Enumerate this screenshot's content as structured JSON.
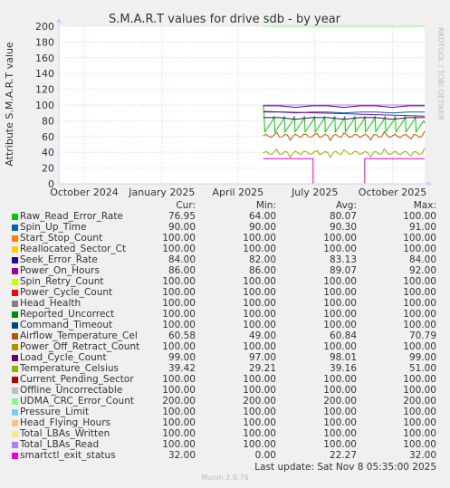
{
  "chart_data": {
    "type": "line",
    "title": "S.M.A.R.T values for drive sdb - by year",
    "ylabel": "Attribute S.M.A.R.T value",
    "xlabel": "",
    "ylim": [
      0,
      200
    ],
    "y_ticks": [
      0,
      20,
      40,
      60,
      80,
      100,
      120,
      140,
      160,
      180,
      200
    ],
    "x_range": [
      "2024-09-01",
      "2025-11-08"
    ],
    "x_ticks": [
      {
        "date": "2024-10-01",
        "label": "October 2024"
      },
      {
        "date": "2025-01-01",
        "label": "January 2025"
      },
      {
        "date": "2025-04-01",
        "label": "April 2025"
      },
      {
        "date": "2025-07-01",
        "label": "July 2025"
      },
      {
        "date": "2025-10-01",
        "label": "October 2025"
      }
    ],
    "data_start": "2025-05-01",
    "grid": true,
    "watermark": "RRDTOOL / TOBI OETIKER",
    "columns": [
      "Cur:",
      "Min:",
      "Avg:",
      "Max:"
    ],
    "series": [
      {
        "name": "Raw_Read_Error_Rate",
        "color": "#00cc00",
        "cur": "76.95",
        "min": "64.00",
        "avg": "80.07",
        "max": "100.00",
        "style": "sawtooth"
      },
      {
        "name": "Spin_Up_Time",
        "color": "#0066b3",
        "cur": "90.00",
        "min": "90.00",
        "avg": "90.30",
        "max": "91.00",
        "style": "flat"
      },
      {
        "name": "Start_Stop_Count",
        "color": "#ff8000",
        "cur": "100.00",
        "min": "100.00",
        "avg": "100.00",
        "max": "100.00",
        "style": "flat"
      },
      {
        "name": "Reallocated_Sector_Ct",
        "color": "#ffcc00",
        "cur": "100.00",
        "min": "100.00",
        "avg": "100.00",
        "max": "100.00",
        "style": "flat"
      },
      {
        "name": "Seek_Error_Rate",
        "color": "#330099",
        "cur": "84.00",
        "min": "82.00",
        "avg": "83.13",
        "max": "84.00",
        "style": "flat"
      },
      {
        "name": "Power_On_Hours",
        "color": "#990099",
        "cur": "86.00",
        "min": "86.00",
        "avg": "89.07",
        "max": "92.00",
        "style": "decline"
      },
      {
        "name": "Spin_Retry_Count",
        "color": "#ccff00",
        "cur": "100.00",
        "min": "100.00",
        "avg": "100.00",
        "max": "100.00",
        "style": "flat"
      },
      {
        "name": "Power_Cycle_Count",
        "color": "#ff0000",
        "cur": "100.00",
        "min": "100.00",
        "avg": "100.00",
        "max": "100.00",
        "style": "flat"
      },
      {
        "name": "Head_Health",
        "color": "#808080",
        "cur": "100.00",
        "min": "100.00",
        "avg": "100.00",
        "max": "100.00",
        "style": "flat"
      },
      {
        "name": "Reported_Uncorrect",
        "color": "#008f00",
        "cur": "100.00",
        "min": "100.00",
        "avg": "100.00",
        "max": "100.00",
        "style": "flat"
      },
      {
        "name": "Command_Timeout",
        "color": "#00487d",
        "cur": "100.00",
        "min": "100.00",
        "avg": "100.00",
        "max": "100.00",
        "style": "flat"
      },
      {
        "name": "Airflow_Temperature_Cel",
        "color": "#b35a00",
        "cur": "60.58",
        "min": "49.00",
        "avg": "60.84",
        "max": "70.79",
        "style": "wavy"
      },
      {
        "name": "Power_Off_Retract_Count",
        "color": "#b38f00",
        "cur": "100.00",
        "min": "100.00",
        "avg": "100.00",
        "max": "100.00",
        "style": "flat"
      },
      {
        "name": "Load_Cycle_Count",
        "color": "#6b006b",
        "cur": "99.00",
        "min": "97.00",
        "avg": "98.01",
        "max": "99.00",
        "style": "flat"
      },
      {
        "name": "Temperature_Celsius",
        "color": "#8fb300",
        "cur": "39.42",
        "min": "29.21",
        "avg": "39.16",
        "max": "51.00",
        "style": "wavy"
      },
      {
        "name": "Current_Pending_Sector",
        "color": "#b30000",
        "cur": "100.00",
        "min": "100.00",
        "avg": "100.00",
        "max": "100.00",
        "style": "flat"
      },
      {
        "name": "Offline_Uncorrectable",
        "color": "#bebebe",
        "cur": "100.00",
        "min": "100.00",
        "avg": "100.00",
        "max": "100.00",
        "style": "flat"
      },
      {
        "name": "UDMA_CRC_Error_Count",
        "color": "#80ff80",
        "cur": "200.00",
        "min": "200.00",
        "avg": "200.00",
        "max": "200.00",
        "style": "flat"
      },
      {
        "name": "Pressure_Limit",
        "color": "#80c9ff",
        "cur": "100.00",
        "min": "100.00",
        "avg": "100.00",
        "max": "100.00",
        "style": "flat"
      },
      {
        "name": "Head_Flying_Hours",
        "color": "#ffc080",
        "cur": "100.00",
        "min": "100.00",
        "avg": "100.00",
        "max": "100.00",
        "style": "flat"
      },
      {
        "name": "Total_LBAs_Written",
        "color": "#ffe680",
        "cur": "100.00",
        "min": "100.00",
        "avg": "100.00",
        "max": "100.00",
        "style": "flat"
      },
      {
        "name": "Total_LBAs_Read",
        "color": "#aa80ff",
        "cur": "100.00",
        "min": "100.00",
        "avg": "100.00",
        "max": "100.00",
        "style": "flat"
      },
      {
        "name": "smartctl_exit_status",
        "color": "#ee00cc",
        "cur": "32.00",
        "min": "0.00",
        "avg": "22.27",
        "max": "32.00",
        "style": "exit",
        "drops": [
          [
            "2025-06-29",
            "2025-08-29"
          ]
        ]
      }
    ]
  },
  "footer": {
    "last_update": "Last update: Sat Nov  8 05:35:00 2025",
    "munin": "Munin 2.0.76"
  }
}
